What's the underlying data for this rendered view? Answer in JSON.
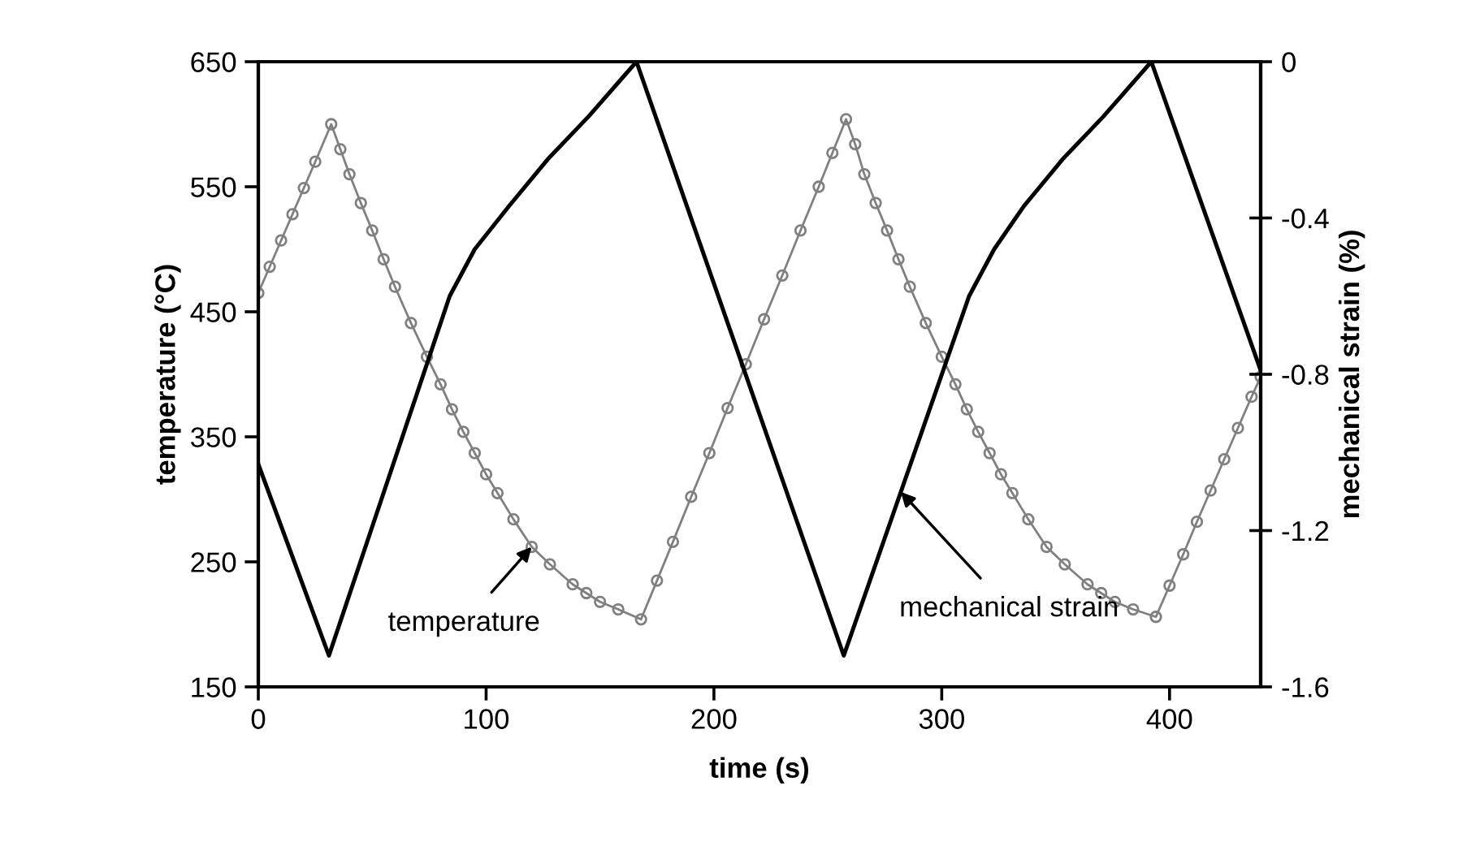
{
  "chart_data": {
    "type": "line",
    "xlabel": "time (s)",
    "ylabel": "temperature (°C)",
    "y2label": "mechanical strain (%)",
    "xlim": [
      0,
      440
    ],
    "xticks": [
      0,
      100,
      200,
      300,
      400
    ],
    "ylim": [
      150,
      650
    ],
    "yticks": [
      150,
      250,
      350,
      450,
      550,
      650
    ],
    "y2lim": [
      -1.6,
      0
    ],
    "y2ticks": [
      {
        "value": -1.6,
        "label": "-1.6"
      },
      {
        "value": -1.2,
        "label": "-1.2"
      },
      {
        "value": -0.8,
        "label": "-0.8"
      },
      {
        "value": -0.4,
        "label": "-0.4"
      },
      0
    ],
    "grid": false,
    "legend": false,
    "series": [
      {
        "color": "#808080",
        "marker": "circle",
        "x": [
          0,
          5,
          10,
          15,
          20,
          25,
          32,
          36,
          40,
          45,
          50,
          55,
          60,
          67,
          74,
          80,
          85,
          90,
          95,
          100,
          105,
          112,
          120,
          128,
          138,
          144,
          150,
          158,
          168,
          175,
          182,
          190,
          198,
          206,
          214,
          222,
          230,
          238,
          246,
          252,
          258,
          262,
          266,
          271,
          276,
          281,
          286,
          293,
          300,
          306,
          311,
          316,
          321,
          326,
          331,
          338,
          346,
          354,
          364,
          370,
          376,
          384,
          394,
          400,
          406,
          412,
          418,
          424,
          430,
          436,
          440
        ],
        "values": [
          465,
          486,
          507,
          528,
          549,
          570,
          600,
          580,
          560,
          537,
          515,
          492,
          470,
          441,
          414,
          392,
          372,
          354,
          337,
          320,
          305,
          284,
          262,
          248,
          232,
          225,
          218,
          212,
          204,
          235,
          266,
          302,
          337,
          373,
          408,
          444,
          479,
          515,
          550,
          577,
          604,
          584,
          560,
          537,
          515,
          492,
          470,
          441,
          414,
          392,
          372,
          354,
          337,
          320,
          305,
          284,
          262,
          248,
          232,
          225,
          218,
          212,
          206,
          231,
          256,
          282,
          307,
          332,
          357,
          382,
          398
        ]
      },
      {
        "color": "#000000",
        "marker": "none",
        "axis": "y2",
        "x": [
          0,
          31,
          84,
          95,
          110,
          127,
          145,
          166,
          257,
          312,
          323,
          336,
          353,
          371,
          392,
          440
        ],
        "values": [
          -1.03,
          -1.52,
          -0.6,
          -0.48,
          -0.37,
          -0.25,
          -0.14,
          0,
          -1.52,
          -0.6,
          -0.48,
          -0.37,
          -0.25,
          -0.14,
          0,
          -0.79
        ]
      }
    ],
    "annotations": [
      {
        "text": "temperature",
        "x": 120,
        "y": 262
      },
      {
        "text": "mechanical strain",
        "x": 282,
        "y": 306
      }
    ]
  }
}
